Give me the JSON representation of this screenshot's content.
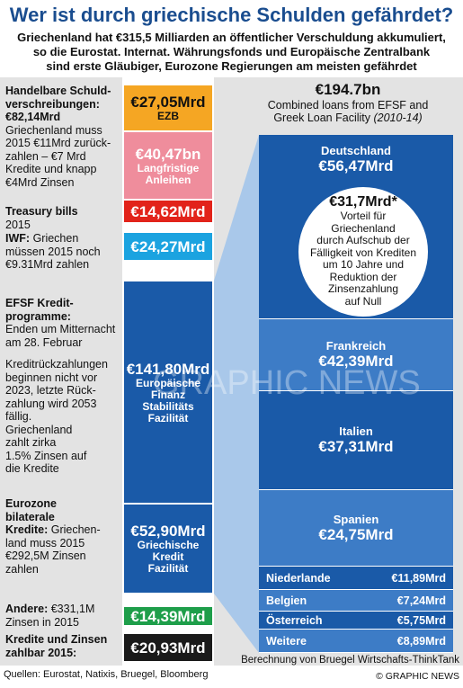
{
  "title": "Wer ist durch griechische Schulden gefährdet?",
  "subtitle": [
    "Griechenland hat €315,5 Milliarden an öffentlicher Verschuldung akkumuliert,",
    "so die Eurostat. Internat. Währungsfonds und Europäische Zentralbank",
    "sind erste Gläubiger, Eurozone Regierungen am meisten gefährdet"
  ],
  "left": [
    {
      "heading": [
        "Handelbare Schuld-",
        "verschreibungen:",
        "€82,14Mrd"
      ],
      "text": [
        "Griechenland muss",
        "2015 €11Mrd zurück-",
        "zahlen – €7 Mrd",
        "Kredite und knapp",
        "€4Mrd Zinsen"
      ]
    },
    {
      "heading": [
        "Treasury bills"
      ],
      "text": [
        "2015"
      ]
    },
    {
      "heading": [
        "IWF:"
      ],
      "text": [
        "Griechen",
        "müssen 2015 noch",
        "€9.31Mrd zahlen"
      ]
    },
    {
      "heading": [
        "EFSF Kredit-",
        "programme:"
      ],
      "text": [
        "Enden um Mitternacht",
        "am 28. Februar"
      ],
      "text2": [
        "Kreditrückzahlungen",
        "beginnen nicht vor",
        "2023, letzte Rück-",
        "zahlung wird 2053",
        "fällig.",
        "Griechenland",
        "zahlt zirka",
        "1.5% Zinsen auf",
        "die Kredite"
      ]
    },
    {
      "heading": [
        "Eurozone",
        "bilaterale",
        "Kredite:"
      ],
      "text": [
        "Griechen-",
        "land muss 2015",
        "€292,5M Zinsen",
        "zahlen"
      ]
    },
    {
      "heading": [
        "Andere:"
      ],
      "text": [
        "€331,1M",
        "Zinsen in 2015"
      ]
    },
    {
      "heading": [
        "Kredite und Zinsen",
        "zahlbar 2015:"
      ],
      "text": []
    }
  ],
  "blocks": [
    {
      "amount": "€27,05Mrd",
      "label": [
        "EZB"
      ],
      "color": "#f5a623"
    },
    {
      "amount": "€40,47bn",
      "label": [
        "Langfristige",
        "Anleihen"
      ],
      "color": "#ef8d9c"
    },
    {
      "amount": "€14,62Mrd",
      "label": [],
      "color": "#e2231a"
    },
    {
      "amount": "€24,27Mrd",
      "label": [],
      "color": "#1ba3e0"
    },
    {
      "amount": "€141,80Mrd",
      "label": [
        "Europäische",
        "Finanz",
        "Stabilitäts",
        "Fazilität"
      ],
      "color": "#1a5aa8"
    },
    {
      "amount": "€52,90Mrd",
      "label": [
        "Griechische",
        "Kredit",
        "Fazilität"
      ],
      "color": "#1a5aa8"
    },
    {
      "amount": "€14,39Mrd",
      "label": [],
      "color": "#1e9e4a"
    },
    {
      "amount": "€20,93Mrd",
      "label": [],
      "color": "#1a1a1a"
    }
  ],
  "right_header": {
    "amount": "€194.7bn",
    "lines": [
      "Combined loans from EFSF and",
      "Greek Loan Facility"
    ],
    "period": "(2010-14)"
  },
  "countries": [
    {
      "name": "Deutschland",
      "amount": "€56,47Mrd"
    },
    {
      "name": "Frankreich",
      "amount": "€42,39Mrd"
    },
    {
      "name": "Italien",
      "amount": "€37,31Mrd"
    },
    {
      "name": "Spanien",
      "amount": "€24,75Mrd"
    },
    {
      "name": "Niederlande",
      "amount": "€11,89Mrd"
    },
    {
      "name": "Belgien",
      "amount": "€7,24Mrd"
    },
    {
      "name": "Österreich",
      "amount": "€5,75Mrd"
    },
    {
      "name": "Weitere",
      "amount": "€8,89Mrd"
    }
  ],
  "callout": {
    "amount": "€31,7Mrd*",
    "lines": [
      "Vorteil für",
      "Griechenland",
      "durch Aufschub der",
      "Fälligkeit von Krediten",
      "um 10 Jahre und",
      "Reduktion der",
      "Zinsenzahlung",
      "auf Null"
    ]
  },
  "watermark": "GRAPHIC NEWS",
  "footer": {
    "sources": "Quellen: Eurostat, Natixis, Bruegel, Bloomberg",
    "note": "Berechnung von Bruegel Wirtschafts-ThinkTank",
    "copyright": "© GRAPHIC NEWS"
  }
}
